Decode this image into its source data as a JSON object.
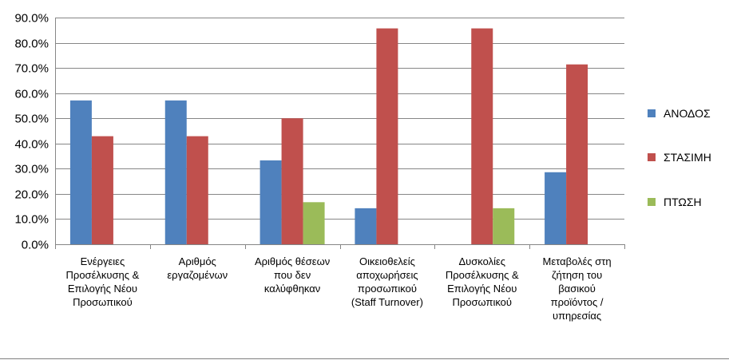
{
  "chart_data": {
    "type": "bar",
    "categories": [
      [
        "Ενέργειες",
        "Προσέλκυσης &",
        "Επιλογής Νέου",
        "Προσωπικού"
      ],
      [
        "Αριθμός",
        "εργαζομένων"
      ],
      [
        "Αριθμός θέσεων",
        "που δεν",
        "καλύφθηκαν"
      ],
      [
        "Οικειοθελείς",
        "αποχωρήσεις",
        "προσωπικού",
        "(Staff Turnover)"
      ],
      [
        "Δυσκολίες",
        "Προσέλκυσης &",
        "Επιλογής Νέου",
        "Προσωπικού"
      ],
      [
        "Μεταβολές στη",
        "ζήτηση του",
        "βασικού",
        "προϊόντος /",
        "υπηρεσίας"
      ]
    ],
    "series": [
      {
        "name": "ΑΝΟΔΟΣ",
        "color": "#4f81bd",
        "values": [
          57.1,
          57.1,
          33.3,
          14.3,
          0.0,
          28.6
        ]
      },
      {
        "name": "ΣΤΑΣΙΜΗ",
        "color": "#c0504d",
        "values": [
          42.9,
          42.9,
          50.0,
          85.7,
          85.7,
          71.4
        ]
      },
      {
        "name": "ΠΤΩΣΗ",
        "color": "#9bbb59",
        "values": [
          0.0,
          0.0,
          16.7,
          0.0,
          14.3,
          0.0
        ]
      }
    ],
    "yticks": [
      "0.0%",
      "10.0%",
      "20.0%",
      "30.0%",
      "40.0%",
      "50.0%",
      "60.0%",
      "70.0%",
      "80.0%",
      "90.0%"
    ],
    "ylim": [
      0,
      90
    ],
    "grid": true,
    "legend_position": "right"
  }
}
